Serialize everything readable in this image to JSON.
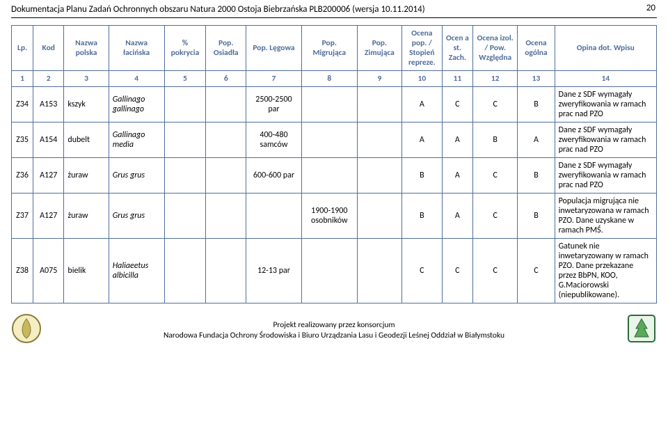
{
  "page_number": "20",
  "doc_header": "Dokumentacja Planu Zadań Ochronnych obszaru Natura 2000 Ostoja Biebrzańska PLB200006 (wersja 10.11.2014)",
  "table": {
    "header_border_color": "#4f6d9b",
    "header_text_color": "#4f6d9b",
    "columns": [
      "Lp.",
      "Kod",
      "Nazwa polska",
      "Nazwa łacińska",
      "% pokrycia",
      "Pop. Osiadła",
      "Pop. Lęgowa",
      "Pop. Migrująca",
      "Pop. Zimująca",
      "Ocena pop. / Stopień repreze.",
      "Ocen a st. Zach.",
      "Ocena izol. / Pow. Względna",
      "Ocena ogólna",
      "Opina dot. Wpisu"
    ],
    "numrow": [
      "1",
      "2",
      "3",
      "4",
      "5",
      "6",
      "7",
      "8",
      "9",
      "10",
      "11",
      "12",
      "13",
      "14"
    ],
    "rows": [
      {
        "lp": "Z34",
        "kod": "A153",
        "npl": "kszyk",
        "nlat": "Gallinago gallinago",
        "pokr": "",
        "osi": "",
        "leg": "2500-2500 par",
        "mig": "",
        "zim": "",
        "o1": "A",
        "o2": "C",
        "o3": "C",
        "o4": "B",
        "op": "Dane z SDF wymagały zweryfikowania w ramach prac nad PZO"
      },
      {
        "lp": "Z35",
        "kod": "A154",
        "npl": "dubelt",
        "nlat": "Gallinago media",
        "pokr": "",
        "osi": "",
        "leg": "400-480 samców",
        "mig": "",
        "zim": "",
        "o1": "A",
        "o2": "A",
        "o3": "B",
        "o4": "A",
        "op": "Dane z SDF wymagały zweryfikowania w ramach prac nad PZO"
      },
      {
        "lp": "Z36",
        "kod": "A127",
        "npl": "żuraw",
        "nlat": "Grus grus",
        "pokr": "",
        "osi": "",
        "leg": "600-600 par",
        "mig": "",
        "zim": "",
        "o1": "B",
        "o2": "A",
        "o3": "C",
        "o4": "B",
        "op": "Dane z SDF wymagały zweryfikowania w ramach prac nad PZO"
      },
      {
        "lp": "Z37",
        "kod": "A127",
        "npl": "żuraw",
        "nlat": "Grus grus",
        "pokr": "",
        "osi": "",
        "leg": "",
        "mig": "1900-1900 osobników",
        "zim": "",
        "o1": "B",
        "o2": "A",
        "o3": "C",
        "o4": "B",
        "op": "Populacja migrująca nie inwetaryzowana w ramach PZO. Dane uzyskane w ramach PMŚ."
      },
      {
        "lp": "Z38",
        "kod": "A075",
        "npl": "bielik",
        "nlat": "Haliaeetus albicilla",
        "pokr": "",
        "osi": "",
        "leg": "12-13 par",
        "mig": "",
        "zim": "",
        "o1": "C",
        "o2": "C",
        "o3": "C",
        "o4": "C",
        "op": "Gatunek nie inwetaryzowany w ramach PZO. Dane przekazane przez BbPN, KOO, G.Maciorowski (niepublikowane)."
      }
    ]
  },
  "footer": {
    "line1": "Projekt realizowany przez konsorcjum",
    "line2": "Narodowa Fundacja Ochrony Środowiska i Biuro Urządzania Lasu i Geodezji Leśnej Oddział w Białymstoku"
  },
  "logos": {
    "left": {
      "stroke": "#8a7a3a",
      "fill": "#d7c97a"
    },
    "right": {
      "stroke": "#2e6b3a",
      "fill": "#5aa85a"
    }
  }
}
